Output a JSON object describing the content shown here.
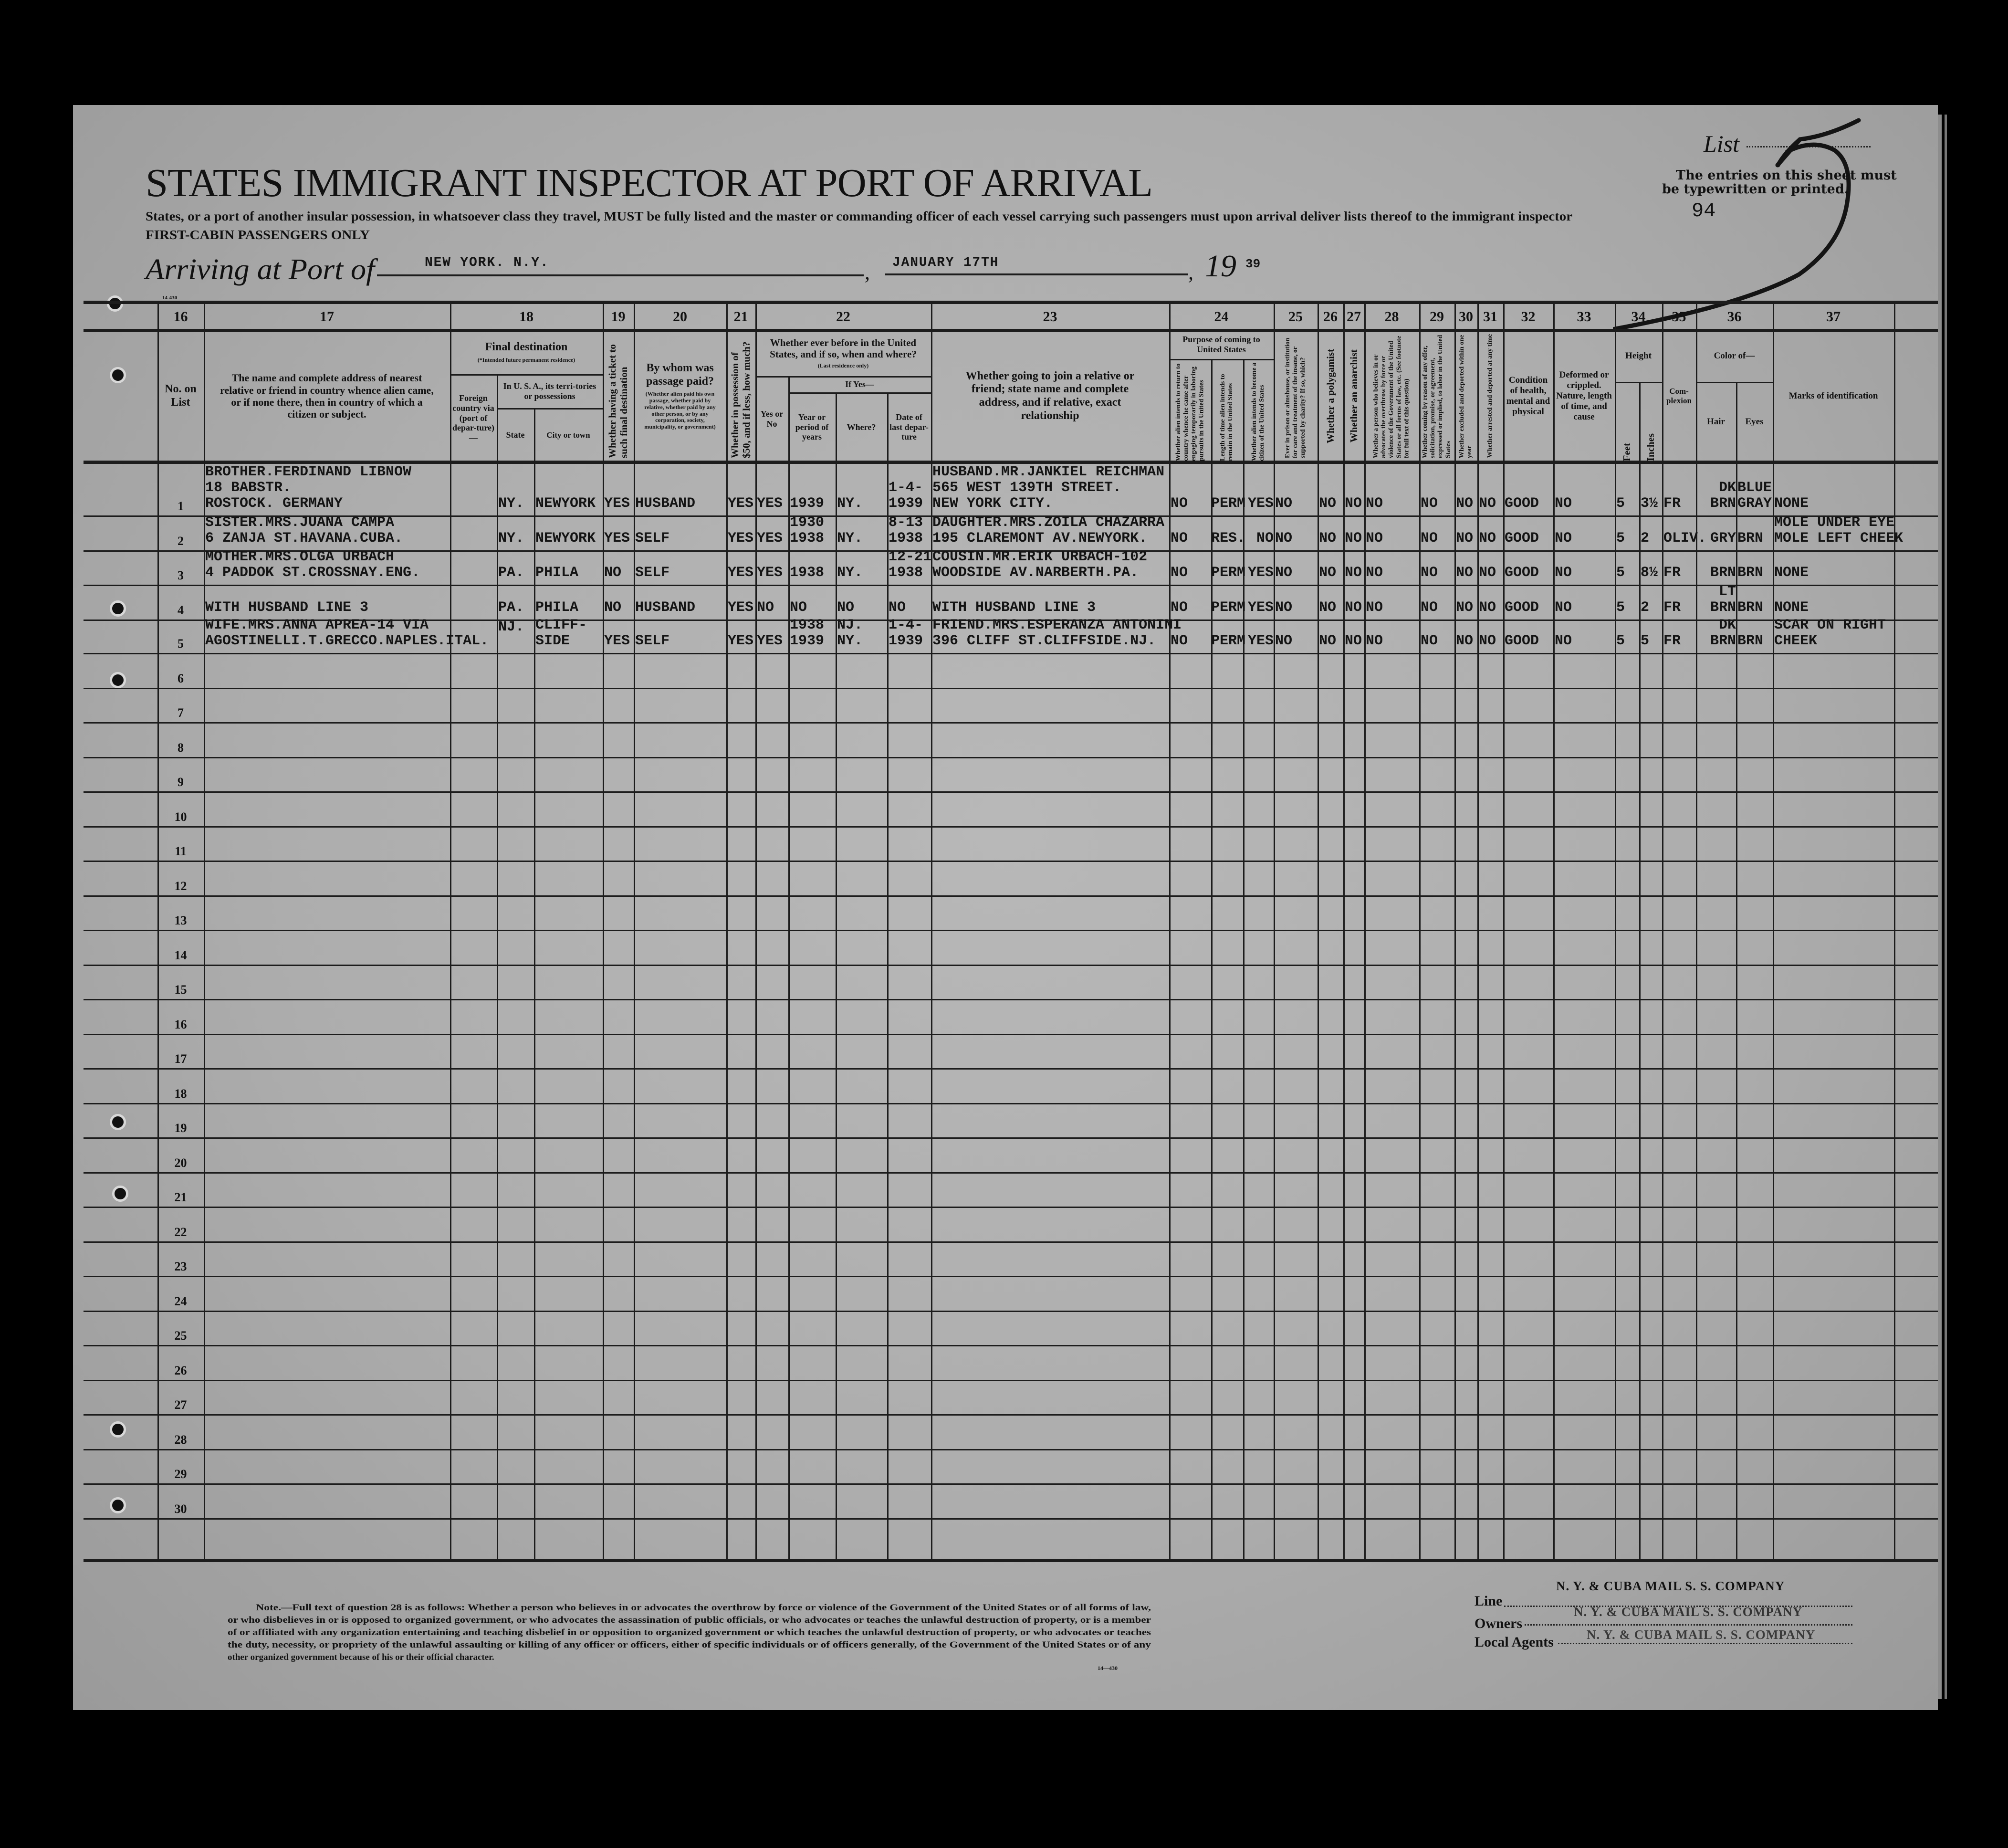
{
  "document": {
    "title": "STATES IMMIGRANT INSPECTOR AT PORT OF ARRIVAL",
    "instruction": "States, or a port of another insular possession, in whatsoever class they travel, MUST be fully listed and the master or commanding officer of each vessel carrying such passengers must upon arrival deliver lists thereof to the immigrant inspector",
    "passenger_class": "FIRST-CABIN PASSENGERS ONLY",
    "arriving_label": "Arriving at Port of",
    "port": "NEW YORK. N.Y.",
    "date": "JANUARY 17TH",
    "year_prefix": "19",
    "year_suffix": "39",
    "form_number": "14-430",
    "list_label": "List",
    "list_number": "5",
    "entries_note_1": "The entries on this sheet must",
    "entries_note_2": "be typewritten or printed.",
    "sheet_number": "94"
  },
  "column_numbers": [
    "16",
    "17",
    "18",
    "19",
    "20",
    "21",
    "22",
    "23",
    "24",
    "25",
    "26",
    "27",
    "28",
    "29",
    "30",
    "31",
    "32",
    "33",
    "34",
    "35",
    "36",
    "37"
  ],
  "headers": {
    "no": "No. on List",
    "relative": "The name and complete address of nearest relative or friend in country whence alien came, or if none there, then in country of which a citizen or subject.",
    "final_destination": "Final destination",
    "final_destination_note": "(*Intended future permanent residence)",
    "foreign": "Foreign country via (port of depar-ture)—",
    "usa": "In U. S. A., its terri-tories or possessions",
    "state": "State",
    "city": "City or town",
    "ticket": "Whether having a ticket to such final destination",
    "paid_by": "By whom was passage paid?",
    "paid_by_note": "(Whether alien paid his own passage, whether paid by relative, whether paid by any other person, or by any corporation, society, municipality, or government)",
    "has_50": "Whether in possession of $50, and if less, how much?",
    "before_us": "Whether ever before in the United States, and if so, when and where?",
    "before_us_note": "(Last residence only)",
    "if_yes": "If Yes—",
    "yes_no": "Yes or No",
    "year": "Year or period of years",
    "where": "Where?",
    "last_departure": "Date of last depar-ture",
    "joining": "Whether going to join a relative or friend; state name and complete address, and if relative, exact relationship",
    "purpose": "Purpose of coming to United States",
    "purpose_return": "Whether alien intends to return to country whence he came after engaging temporarily in laboring pursuits in the United States",
    "length_of_stay": "Length of time alien intends to remain in the United States",
    "citizen_intent": "Whether alien intends to become a citizen of the United States",
    "prison_charity": "Ever in prison or almshouse, or institution for care and treatment of the insane, or supported by charity? If so, which?",
    "polygamist": "Whether a polygamist",
    "anarchist": "Whether an anarchist",
    "q28": "Whether a person who believes in or advocates the overthrow by force or violence of the Government of the United States or all forms of law, etc. (See footnote for full text of this question)",
    "labor_offer": "Whether coming by reason of any offer, solicitation, promise, or agreement, expressed or implied, to labor in the United States",
    "excluded": "Whether excluded and deported within one year",
    "arrested": "Whether arrested and deported at any time",
    "health": "Condition of health, mental and physical",
    "deformed": "Deformed or crippled. Nature, length of time, and cause",
    "height": "Height",
    "feet": "Feet",
    "inches": "Inches",
    "complexion": "Com-plexion",
    "color_of": "Color of—",
    "hair": "Hair",
    "eyes": "Eyes",
    "marks": "Marks of identification"
  },
  "rows": [
    {
      "no": "1",
      "relative": [
        "BROTHER.FERDINAND LIBNOW",
        "18 BABSTR.",
        "ROSTOCK. GERMANY"
      ],
      "state": [
        "NY."
      ],
      "city": [
        "NEWYORK"
      ],
      "ticket": [
        "YES"
      ],
      "paid_by": [
        "HUSBAND"
      ],
      "has_50": [
        "YES"
      ],
      "before_us": [
        "YES"
      ],
      "year": [
        "1939"
      ],
      "where": [
        "NY."
      ],
      "last_departure": [
        "1-4-",
        "1939"
      ],
      "joining": [
        "HUSBAND.MR.JANKIEL REICHMAN",
        "565 WEST 139TH STREET.",
        "NEW YORK CITY."
      ],
      "purpose_return": [
        "NO"
      ],
      "length_of_stay": [
        "PERM"
      ],
      "citizen_intent": [
        "YES"
      ],
      "prison_charity": [
        "NO"
      ],
      "polygamist": [
        "NO"
      ],
      "anarchist": [
        "NO"
      ],
      "q28": [
        "NO"
      ],
      "labor_offer": [
        "NO"
      ],
      "excluded": [
        "NO"
      ],
      "arrested": [
        "NO"
      ],
      "health": [
        "GOOD"
      ],
      "deformed": [
        "NO"
      ],
      "feet": [
        "5"
      ],
      "inches": [
        "3½"
      ],
      "complexion": [
        "FR"
      ],
      "hair": [
        "DK",
        "BRN"
      ],
      "eyes": [
        "BLUE",
        "GRAY"
      ],
      "marks": [
        "NONE"
      ]
    },
    {
      "no": "2",
      "relative": [
        "SISTER.MRS.JUANA CAMPA",
        "6 ZANJA ST.HAVANA.CUBA."
      ],
      "state": [
        "NY."
      ],
      "city": [
        "NEWYORK"
      ],
      "ticket": [
        "YES"
      ],
      "paid_by": [
        "SELF"
      ],
      "has_50": [
        "YES"
      ],
      "before_us": [
        "YES"
      ],
      "year": [
        "1930",
        "1938"
      ],
      "where": [
        "NY."
      ],
      "last_departure": [
        "8-13",
        "1938"
      ],
      "joining": [
        "DAUGHTER.MRS.ZOILA CHAZARRA",
        "195 CLAREMONT AV.NEWYORK."
      ],
      "purpose_return": [
        "NO"
      ],
      "length_of_stay": [
        "RES."
      ],
      "citizen_intent": [
        "NO"
      ],
      "prison_charity": [
        "NO"
      ],
      "polygamist": [
        "NO"
      ],
      "anarchist": [
        "NO"
      ],
      "q28": [
        "NO"
      ],
      "labor_offer": [
        "NO"
      ],
      "excluded": [
        "NO"
      ],
      "arrested": [
        "NO"
      ],
      "health": [
        "GOOD"
      ],
      "deformed": [
        "NO"
      ],
      "feet": [
        "5"
      ],
      "inches": [
        "2"
      ],
      "complexion": [
        "OLIV."
      ],
      "hair": [
        "GRY"
      ],
      "eyes": [
        "BRN"
      ],
      "marks": [
        "MOLE UNDER EYE",
        "MOLE LEFT CHEEK"
      ]
    },
    {
      "no": "3",
      "relative": [
        "MOTHER.MRS.OLGA URBACH",
        "4 PADDOK ST.CROSSNAY.ENG."
      ],
      "state": [
        "PA."
      ],
      "city": [
        "PHILA"
      ],
      "ticket": [
        "NO"
      ],
      "paid_by": [
        "SELF"
      ],
      "has_50": [
        "YES"
      ],
      "before_us": [
        "YES"
      ],
      "year": [
        "1938"
      ],
      "where": [
        "NY."
      ],
      "last_departure": [
        "12-21",
        "1938"
      ],
      "joining": [
        "COUSIN.MR.ERIK URBACH-102",
        "WOODSIDE AV.NARBERTH.PA."
      ],
      "purpose_return": [
        "NO"
      ],
      "length_of_stay": [
        "PERM"
      ],
      "citizen_intent": [
        "YES"
      ],
      "prison_charity": [
        "NO"
      ],
      "polygamist": [
        "NO"
      ],
      "anarchist": [
        "NO"
      ],
      "q28": [
        "NO"
      ],
      "labor_offer": [
        "NO"
      ],
      "excluded": [
        "NO"
      ],
      "arrested": [
        "NO"
      ],
      "health": [
        "GOOD"
      ],
      "deformed": [
        "NO"
      ],
      "feet": [
        "5"
      ],
      "inches": [
        "8½"
      ],
      "complexion": [
        "FR"
      ],
      "hair": [
        "BRN"
      ],
      "eyes": [
        "BRN"
      ],
      "marks": [
        "NONE"
      ]
    },
    {
      "no": "4",
      "relative": [
        "WITH HUSBAND LINE 3"
      ],
      "state": [
        "PA."
      ],
      "city": [
        "PHILA"
      ],
      "ticket": [
        "NO"
      ],
      "paid_by": [
        "HUSBAND"
      ],
      "has_50": [
        "YES"
      ],
      "before_us": [
        "NO"
      ],
      "year": [
        "NO"
      ],
      "where": [
        "NO"
      ],
      "last_departure": [
        "NO"
      ],
      "joining": [
        "WITH HUSBAND LINE 3"
      ],
      "purpose_return": [
        "NO"
      ],
      "length_of_stay": [
        "PERM"
      ],
      "citizen_intent": [
        "YES"
      ],
      "prison_charity": [
        "NO"
      ],
      "polygamist": [
        "NO"
      ],
      "anarchist": [
        "NO"
      ],
      "q28": [
        "NO"
      ],
      "labor_offer": [
        "NO"
      ],
      "excluded": [
        "NO"
      ],
      "arrested": [
        "NO"
      ],
      "health": [
        "GOOD"
      ],
      "deformed": [
        "NO"
      ],
      "feet": [
        "5"
      ],
      "inches": [
        "2"
      ],
      "complexion": [
        "FR"
      ],
      "hair": [
        "LT",
        "BRN"
      ],
      "eyes": [
        "BRN"
      ],
      "marks": [
        "NONE"
      ]
    },
    {
      "no": "5",
      "relative": [
        "WIFE.MRS.ANNA APREA-14 VIA",
        "AGOSTINELLI.T.GRECCO.NAPLES.ITAL."
      ],
      "state": [
        "NJ.",
        ""
      ],
      "city": [
        "CLIFF-",
        "SIDE"
      ],
      "ticket": [
        "YES"
      ],
      "paid_by": [
        "SELF"
      ],
      "has_50": [
        "YES"
      ],
      "before_us": [
        "YES"
      ],
      "year": [
        "1938",
        "1939"
      ],
      "where": [
        "NJ.",
        "NY."
      ],
      "last_departure": [
        "1-4-",
        "1939"
      ],
      "joining": [
        "FRIEND.MRS.ESPERANZA ANTONINI",
        "396 CLIFF ST.CLIFFSIDE.NJ."
      ],
      "purpose_return": [
        "NO"
      ],
      "length_of_stay": [
        "PERM"
      ],
      "citizen_intent": [
        "YES"
      ],
      "prison_charity": [
        "NO"
      ],
      "polygamist": [
        "NO"
      ],
      "anarchist": [
        "NO"
      ],
      "q28": [
        "NO"
      ],
      "labor_offer": [
        "NO"
      ],
      "excluded": [
        "NO"
      ],
      "arrested": [
        "NO"
      ],
      "health": [
        "GOOD"
      ],
      "deformed": [
        "NO"
      ],
      "feet": [
        "5"
      ],
      "inches": [
        "5"
      ],
      "complexion": [
        "FR"
      ],
      "hair": [
        "DK",
        "BRN"
      ],
      "eyes": [
        "BRN"
      ],
      "marks": [
        "SCAR ON RIGHT",
        "CHEEK"
      ]
    }
  ],
  "blank_row_numbers": [
    "6",
    "7",
    "8",
    "9",
    "10",
    "11",
    "12",
    "13",
    "14",
    "15",
    "16",
    "17",
    "18",
    "19",
    "20",
    "21",
    "22",
    "23",
    "24",
    "25",
    "26",
    "27",
    "28",
    "29",
    "30"
  ],
  "footer": {
    "note_lines": [
      "Note.—Full text of question 28 is as follows: Whether a person who believes in or advocates the overthrow by force or violence of the Government of the United States or of all forms of law,",
      "or who disbelieves in or is opposed to organized government, or who advocates the assassination of public officials, or who advocates or teaches the unlawful destruction of property, or is a member",
      "of or affiliated with any organization entertaining and teaching disbelief in or opposition to organized government or which teaches the unlawful destruction of property, or who advocates or teaches",
      "the duty, necessity, or propriety of the unlawful assaulting or killing of any officer or officers, either of specific individuals or of officers generally, of the Government of the United States or of any",
      "other organized government because of his or their official character."
    ],
    "form_number": "14—430",
    "line_label": "Line",
    "line_value": "N. Y. & CUBA MAIL S. S. COMPANY",
    "owners_label": "Owners",
    "owners_value": "N. Y. & CUBA MAIL S. S. COMPANY",
    "agents_label": "Local Agents",
    "agents_value": "N. Y. & CUBA MAIL S. S. COMPANY"
  }
}
